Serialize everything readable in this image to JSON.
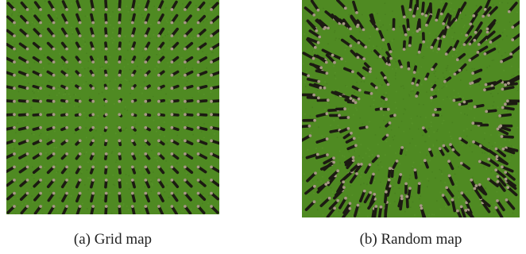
{
  "figure": {
    "panels": [
      {
        "id": "a",
        "caption": "(a) Grid map",
        "ground_color": "#4f8a22",
        "stump_color": "#1c1a12",
        "cap_color": "#a89a86"
      },
      {
        "id": "b",
        "caption": "(b) Random map",
        "ground_color": "#4f8a22",
        "stump_color": "#1c1a12",
        "cap_color": "#a89a86"
      }
    ]
  }
}
